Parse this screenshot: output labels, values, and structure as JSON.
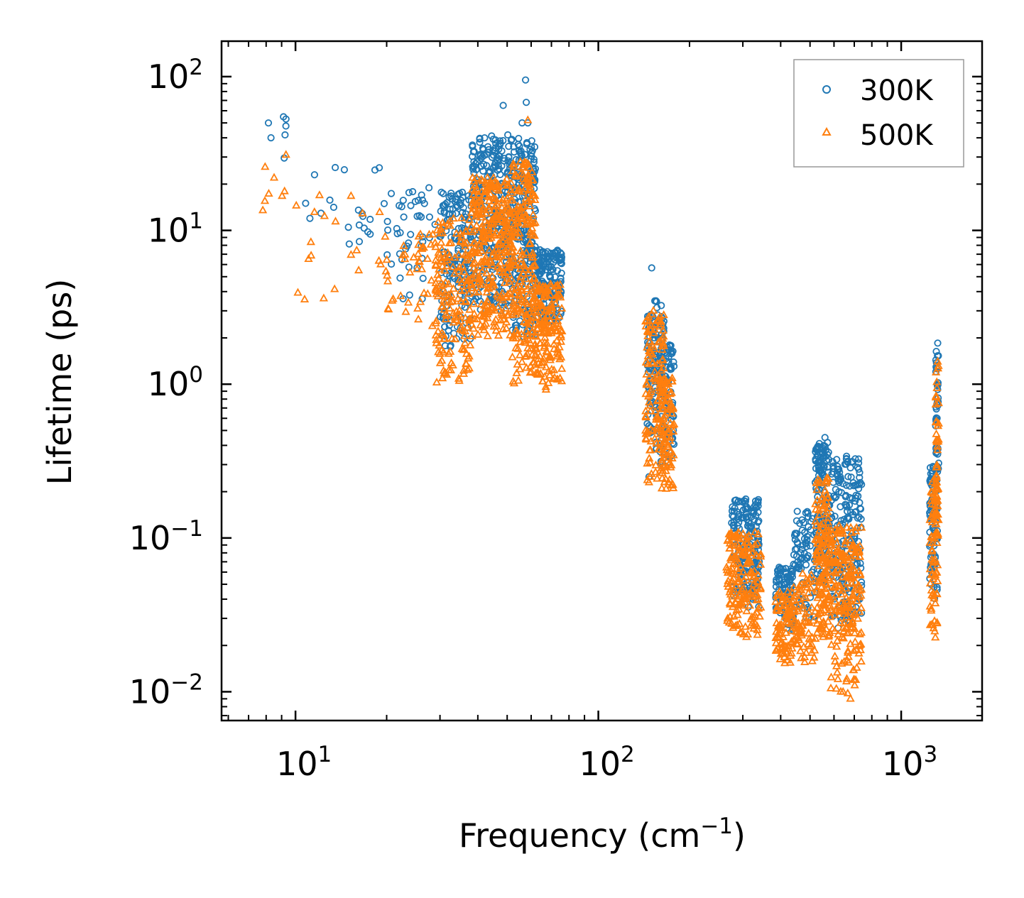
{
  "chart_data": {
    "type": "scatter",
    "xscale": "log",
    "yscale": "log",
    "xlim": [
      5.7,
      1850
    ],
    "ylim": [
      0.0065,
      170
    ],
    "xlabel": "Frequency (cm",
    "xlabel_sup": "−1",
    "xlabel_end": ")",
    "ylabel": "Lifetime (ps)",
    "xticks": [
      {
        "value": 10,
        "base": "10",
        "exp": "1"
      },
      {
        "value": 100,
        "base": "10",
        "exp": "2"
      },
      {
        "value": 1000,
        "base": "10",
        "exp": "3"
      }
    ],
    "yticks": [
      {
        "value": 100,
        "base": "10",
        "exp": "2"
      },
      {
        "value": 10,
        "base": "10",
        "exp": "1"
      },
      {
        "value": 1,
        "base": "10",
        "exp": "0"
      },
      {
        "value": 0.1,
        "base": "10",
        "exp": "−1"
      },
      {
        "value": 0.01,
        "base": "10",
        "exp": "−2"
      }
    ],
    "legend_position": "top-right",
    "series": [
      {
        "name": "300K",
        "marker": "circle",
        "color": "#1f77b4",
        "clusters": [
          {
            "f": [
              7.8,
              10
            ],
            "t": [
              20,
              55
            ],
            "n": 5
          },
          {
            "f": [
              10,
              20
            ],
            "t": [
              6.5,
              30
            ],
            "n": 22
          },
          {
            "f": [
              20,
              30
            ],
            "t": [
              3.5,
              19
            ],
            "n": 45
          },
          {
            "f": [
              30,
              38
            ],
            "t": [
              1.7,
              18
            ],
            "n": 160
          },
          {
            "f": [
              38,
              52
            ],
            "t": [
              3,
              42
            ],
            "n": 300
          },
          {
            "f": [
              52,
              62
            ],
            "t": [
              2,
              40
            ],
            "n": 220
          },
          {
            "f": [
              62,
              76
            ],
            "t": [
              2.5,
              7.5
            ],
            "n": 160
          },
          {
            "f": [
              145,
              165
            ],
            "t": [
              0.35,
              3.5
            ],
            "n": 130
          },
          {
            "f": [
              160,
              178
            ],
            "t": [
              0.3,
              1.8
            ],
            "n": 90
          },
          {
            "f": [
              275,
              340
            ],
            "t": [
              0.035,
              0.18
            ],
            "n": 170
          },
          {
            "f": [
              385,
              440
            ],
            "t": [
              0.025,
              0.065
            ],
            "n": 90
          },
          {
            "f": [
              440,
              520
            ],
            "t": [
              0.03,
              0.15
            ],
            "n": 80
          },
          {
            "f": [
              520,
              580
            ],
            "t": [
              0.05,
              0.42
            ],
            "n": 140
          },
          {
            "f": [
              580,
              740
            ],
            "t": [
              0.025,
              0.33
            ],
            "n": 200
          },
          {
            "f": [
              1240,
              1320
            ],
            "t": [
              0.04,
              0.3
            ],
            "n": 80
          },
          {
            "f": [
              1300,
              1330
            ],
            "t": [
              0.2,
              1.8
            ],
            "n": 40
          }
        ],
        "outliers": [
          {
            "f": 48.5,
            "t": 65
          },
          {
            "f": 57.5,
            "t": 95
          },
          {
            "f": 57.8,
            "t": 68
          },
          {
            "f": 58.5,
            "t": 50
          },
          {
            "f": 56,
            "t": 50
          },
          {
            "f": 150,
            "t": 5.7
          },
          {
            "f": 147,
            "t": 0.25
          },
          {
            "f": 9.3,
            "t": 53
          },
          {
            "f": 8.3,
            "t": 40
          },
          {
            "f": 1320,
            "t": 1.85
          },
          {
            "f": 560,
            "t": 0.45
          },
          {
            "f": 660,
            "t": 0.34
          }
        ]
      },
      {
        "name": "500K",
        "marker": "triangle",
        "color": "#ff7f0e",
        "clusters": [
          {
            "f": [
              7.8,
              10
            ],
            "t": [
              13,
              32
            ],
            "n": 5
          },
          {
            "f": [
              10,
              20
            ],
            "t": [
              3.5,
              17
            ],
            "n": 22
          },
          {
            "f": [
              20,
              30
            ],
            "t": [
              2.2,
              10
            ],
            "n": 45
          },
          {
            "f": [
              29,
              38
            ],
            "t": [
              1,
              12
            ],
            "n": 170
          },
          {
            "f": [
              38,
              52
            ],
            "t": [
              2,
              22
            ],
            "n": 320
          },
          {
            "f": [
              52,
              62
            ],
            "t": [
              1,
              28
            ],
            "n": 230
          },
          {
            "f": [
              62,
              76
            ],
            "t": [
              0.9,
              4.5
            ],
            "n": 160
          },
          {
            "f": [
              143,
              165
            ],
            "t": [
              0.23,
              2.9
            ],
            "n": 130
          },
          {
            "f": [
              160,
              178
            ],
            "t": [
              0.2,
              1.1
            ],
            "n": 90
          },
          {
            "f": [
              265,
              345
            ],
            "t": [
              0.022,
              0.11
            ],
            "n": 180
          },
          {
            "f": [
              385,
              440
            ],
            "t": [
              0.015,
              0.045
            ],
            "n": 90
          },
          {
            "f": [
              440,
              520
            ],
            "t": [
              0.015,
              0.06
            ],
            "n": 80
          },
          {
            "f": [
              520,
              580
            ],
            "t": [
              0.02,
              0.25
            ],
            "n": 150
          },
          {
            "f": [
              580,
              740
            ],
            "t": [
              0.009,
              0.12
            ],
            "n": 220
          },
          {
            "f": [
              1240,
              1320
            ],
            "t": [
              0.022,
              0.25
            ],
            "n": 80
          },
          {
            "f": [
              1300,
              1330
            ],
            "t": [
              0.1,
              1.4
            ],
            "n": 40
          }
        ],
        "outliers": [
          {
            "f": 58.5,
            "t": 52
          },
          {
            "f": 9.3,
            "t": 31
          },
          {
            "f": 8.5,
            "t": 22
          },
          {
            "f": 7.8,
            "t": 13.5
          },
          {
            "f": 152,
            "t": 3
          },
          {
            "f": 147,
            "t": 0.23
          },
          {
            "f": 1320,
            "t": 1.4
          },
          {
            "f": 680,
            "t": 0.009
          }
        ]
      }
    ]
  }
}
